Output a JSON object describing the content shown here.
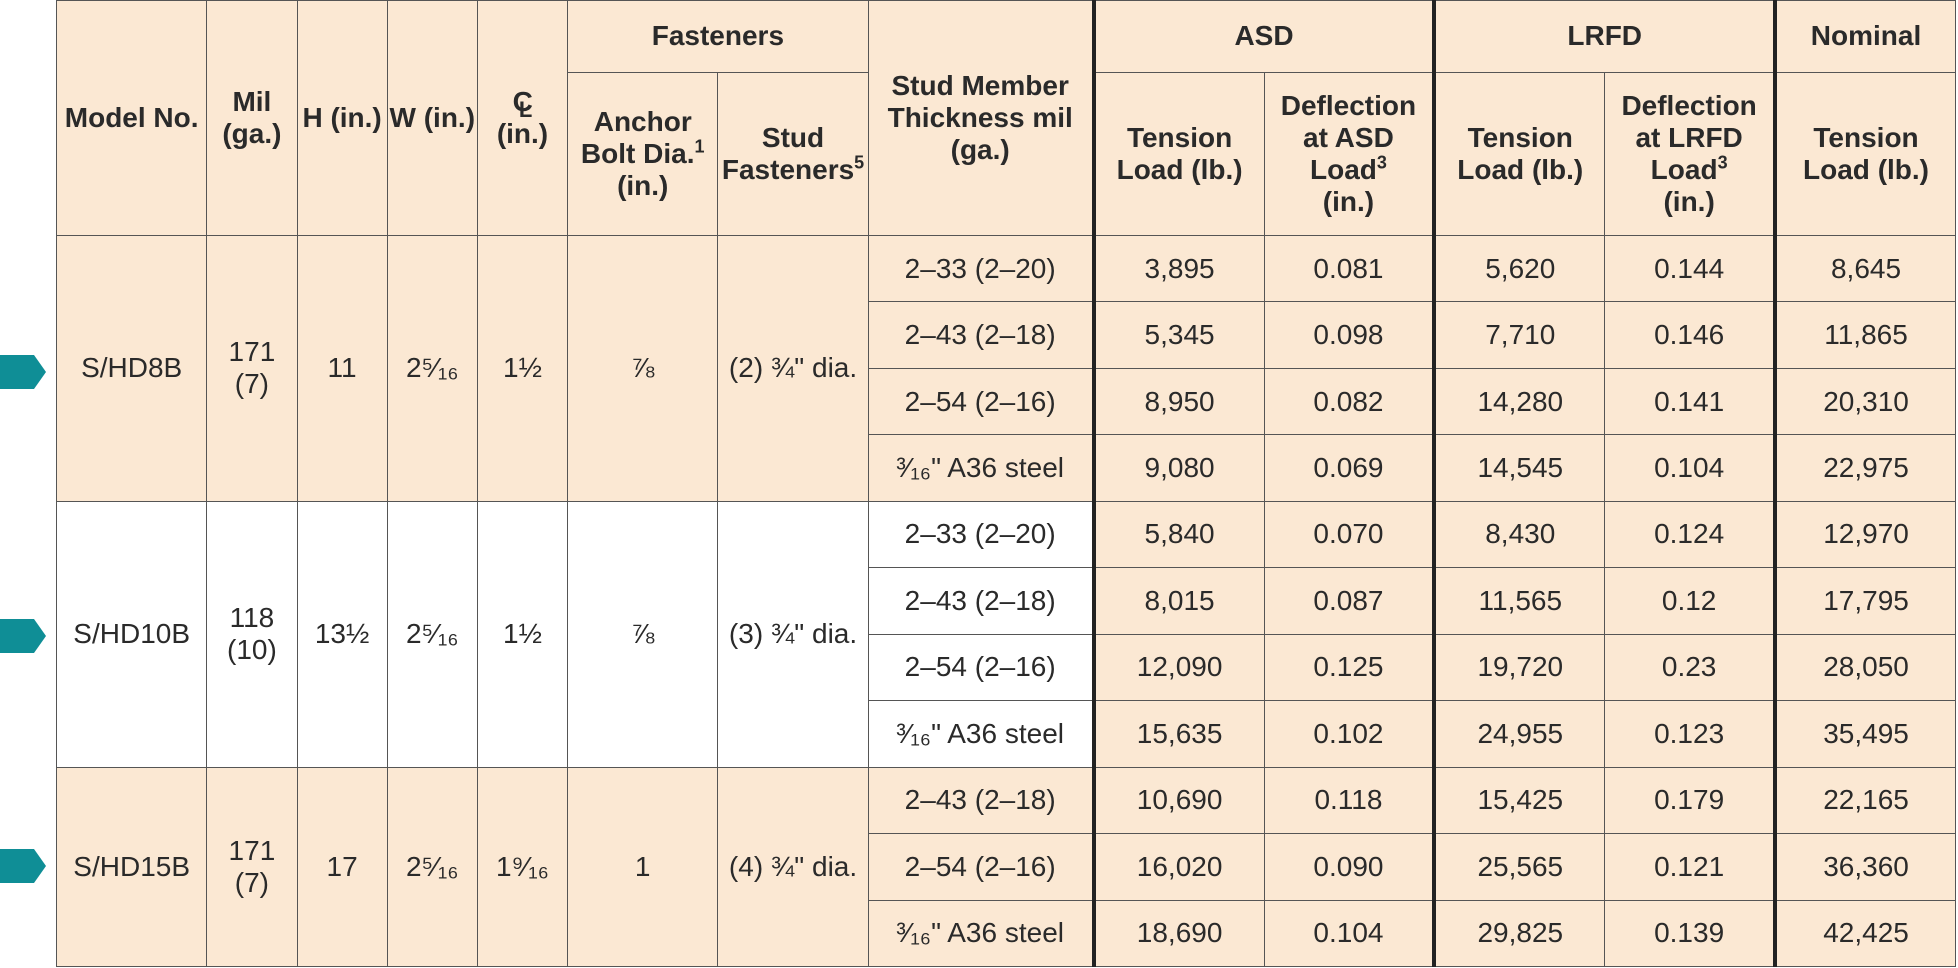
{
  "header": {
    "model_no": "Model No.",
    "mil": "Mil (ga.)",
    "h": "H (in.)",
    "w": "W (in.)",
    "cl_symbol": "C",
    "cl_sub": "L",
    "cl_unit": "(in.)",
    "fasteners": "Fasteners",
    "anchor_bolt": "Anchor Bolt Dia.",
    "anchor_bolt_sup": "1",
    "anchor_bolt_unit": "(in.)",
    "stud_fasteners": "Stud Fasteners",
    "stud_fasteners_sup": "5",
    "stud_member": "Stud Member Thickness mil (ga.)",
    "asd": "ASD",
    "lrfd": "LRFD",
    "nominal": "Nominal",
    "tension_load": "Tension Load (lb.)",
    "deflection_asd_a": "Deflection at ASD Load",
    "deflection_asd_sup": "3",
    "deflection_lrfd_a": "Deflection at LRFD Load",
    "deflection_lrfd_sup": "3",
    "deflection_unit": "(in.)"
  },
  "groups": [
    {
      "model": "S/HD8B",
      "mil": "171",
      "ga": "(7)",
      "h": "11",
      "w": "2⁵⁄₁₆",
      "cl": "1½",
      "anchor": "⅞",
      "stud_fasteners": "(2) ¾\" dia.",
      "rows": [
        {
          "stud": "2–33 (2–20)",
          "asd_t": "3,895",
          "asd_d": "0.081",
          "lrfd_t": "5,620",
          "lrfd_d": "0.144",
          "nom": "8,645"
        },
        {
          "stud": "2–43 (2–18)",
          "asd_t": "5,345",
          "asd_d": "0.098",
          "lrfd_t": "7,710",
          "lrfd_d": "0.146",
          "nom": "11,865"
        },
        {
          "stud": "2–54 (2–16)",
          "asd_t": "8,950",
          "asd_d": "0.082",
          "lrfd_t": "14,280",
          "lrfd_d": "0.141",
          "nom": "20,310"
        },
        {
          "stud": "³⁄₁₆\" A36 steel",
          "asd_t": "9,080",
          "asd_d": "0.069",
          "lrfd_t": "14,545",
          "lrfd_d": "0.104",
          "nom": "22,975"
        }
      ]
    },
    {
      "model": "S/HD10B",
      "mil": "118",
      "ga": "(10)",
      "h": "13½",
      "w": "2⁵⁄₁₆",
      "cl": "1½",
      "anchor": "⅞",
      "stud_fasteners": "(3) ¾\" dia.",
      "rows": [
        {
          "stud": "2–33 (2–20)",
          "asd_t": "5,840",
          "asd_d": "0.070",
          "lrfd_t": "8,430",
          "lrfd_d": "0.124",
          "nom": "12,970"
        },
        {
          "stud": "2–43 (2–18)",
          "asd_t": "8,015",
          "asd_d": "0.087",
          "lrfd_t": "11,565",
          "lrfd_d": "0.12",
          "nom": "17,795"
        },
        {
          "stud": "2–54 (2–16)",
          "asd_t": "12,090",
          "asd_d": "0.125",
          "lrfd_t": "19,720",
          "lrfd_d": "0.23",
          "nom": "28,050"
        },
        {
          "stud": "³⁄₁₆\" A36 steel",
          "asd_t": "15,635",
          "asd_d": "0.102",
          "lrfd_t": "24,955",
          "lrfd_d": "0.123",
          "nom": "35,495"
        }
      ]
    },
    {
      "model": "S/HD15B",
      "mil": "171",
      "ga": "(7)",
      "h": "17",
      "w": "2⁵⁄₁₆",
      "cl": "1⁹⁄₁₆",
      "anchor": "1",
      "stud_fasteners": "(4) ¾\" dia.",
      "rows": [
        {
          "stud": "2–43 (2–18)",
          "asd_t": "10,690",
          "asd_d": "0.118",
          "lrfd_t": "15,425",
          "lrfd_d": "0.179",
          "nom": "22,165"
        },
        {
          "stud": "2–54 (2–16)",
          "asd_t": "16,020",
          "asd_d": "0.090",
          "lrfd_t": "25,565",
          "lrfd_d": "0.121",
          "nom": "36,360"
        },
        {
          "stud": "³⁄₁₆\" A36 steel",
          "asd_t": "18,690",
          "asd_d": "0.104",
          "lrfd_t": "29,825",
          "lrfd_d": "0.139",
          "nom": "42,425"
        }
      ]
    }
  ],
  "colors": {
    "tan": "#fbe8d3",
    "marker": "#0f8e96"
  },
  "icons": {
    "row_marker": "pentagon-arrow-icon"
  }
}
